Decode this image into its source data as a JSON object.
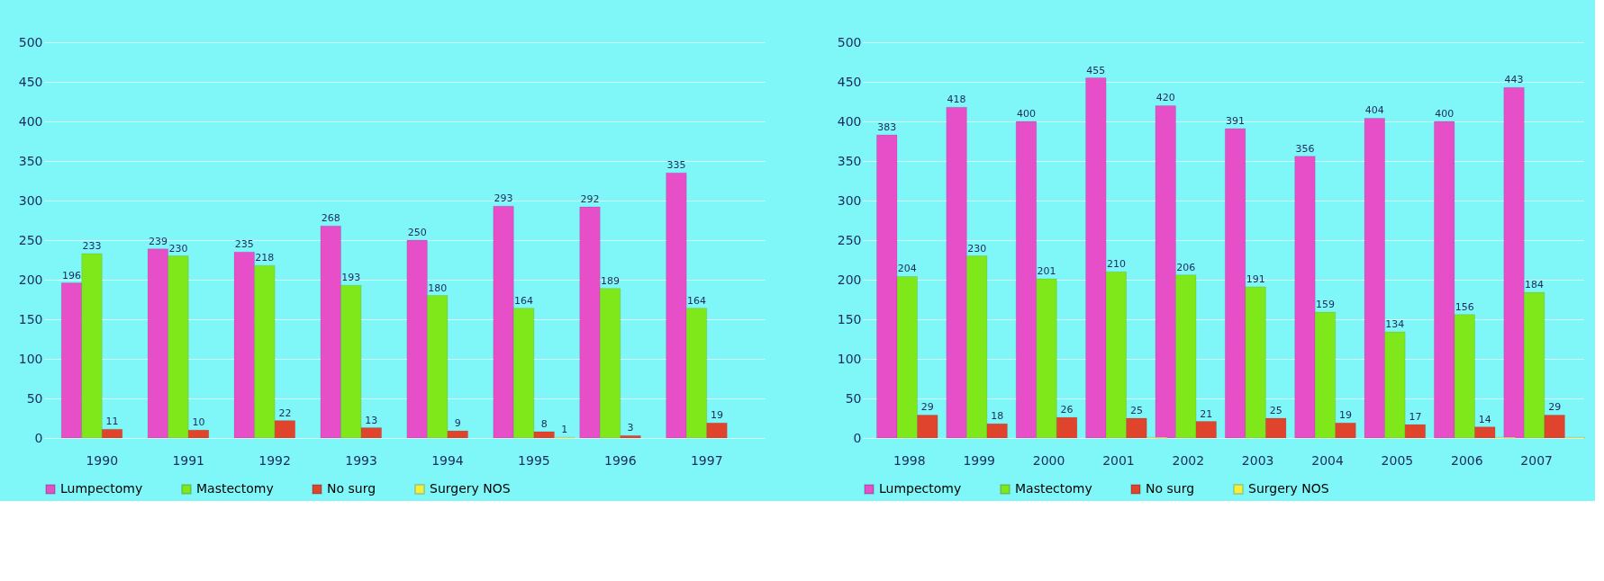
{
  "chart_data": [
    {
      "type": "bar",
      "categories": [
        "1990",
        "1991",
        "1992",
        "1993",
        "1994",
        "1995",
        "1996",
        "1997"
      ],
      "ylim": [
        0,
        500
      ],
      "yticks": [
        0,
        50,
        100,
        150,
        200,
        250,
        300,
        350,
        400,
        450,
        500
      ],
      "grid": "y",
      "legend": "bottom",
      "series": [
        {
          "name": "Lumpectomy",
          "color": "#e64fc8",
          "values": [
            196,
            239,
            235,
            268,
            250,
            293,
            292,
            335
          ],
          "value_labels": [
            "196",
            "239",
            "235",
            "268",
            "250",
            "293",
            "292",
            "335"
          ]
        },
        {
          "name": "Mastectomy",
          "color": "#7ee81a",
          "values": [
            233,
            230,
            218,
            193,
            180,
            164,
            189,
            164
          ],
          "value_labels": [
            "233",
            "230",
            "218",
            "193",
            "180",
            "164",
            "189",
            "164"
          ]
        },
        {
          "name": "No surg",
          "color": "#e0442c",
          "values": [
            11,
            10,
            22,
            13,
            9,
            8,
            3,
            19
          ],
          "value_labels": [
            "11",
            "10",
            "22",
            "13",
            "9",
            "8",
            "3",
            "19"
          ]
        },
        {
          "name": "Surgery NOS",
          "color": "#f4f03a",
          "values": [
            null,
            null,
            null,
            null,
            null,
            1,
            null,
            null
          ],
          "value_labels": [
            null,
            null,
            null,
            null,
            null,
            "1",
            null,
            null
          ]
        }
      ]
    },
    {
      "type": "bar",
      "categories": [
        "1998",
        "1999",
        "2000",
        "2001",
        "2002",
        "2003",
        "2004",
        "2005",
        "2006",
        "2007"
      ],
      "ylim": [
        0,
        500
      ],
      "yticks": [
        0,
        50,
        100,
        150,
        200,
        250,
        300,
        350,
        400,
        450,
        500
      ],
      "grid": "y",
      "legend": "bottom",
      "series": [
        {
          "name": "Lumpectomy",
          "color": "#e64fc8",
          "values": [
            383,
            418,
            400,
            455,
            420,
            391,
            356,
            404,
            400,
            443
          ],
          "value_labels": [
            "383",
            "418",
            "400",
            "455",
            "420",
            "391",
            "356",
            "404",
            "400",
            "443"
          ]
        },
        {
          "name": "Mastectomy",
          "color": "#7ee81a",
          "values": [
            204,
            230,
            201,
            210,
            206,
            191,
            159,
            134,
            156,
            184
          ],
          "value_labels": [
            "204",
            "230",
            "201",
            "210",
            "206",
            "191",
            "159",
            "134",
            "156",
            "184"
          ]
        },
        {
          "name": "No surg",
          "color": "#e0442c",
          "values": [
            29,
            18,
            26,
            25,
            21,
            25,
            19,
            17,
            14,
            29
          ],
          "value_labels": [
            "29",
            "18",
            "26",
            "25",
            "21",
            "25",
            "19",
            "17",
            "14",
            "29"
          ]
        },
        {
          "name": "Surgery NOS",
          "color": "#f4f03a",
          "values": [
            null,
            null,
            null,
            1,
            null,
            null,
            null,
            null,
            1,
            1
          ],
          "value_labels": [
            null,
            null,
            null,
            null,
            null,
            null,
            null,
            null,
            null,
            null
          ]
        }
      ]
    }
  ]
}
